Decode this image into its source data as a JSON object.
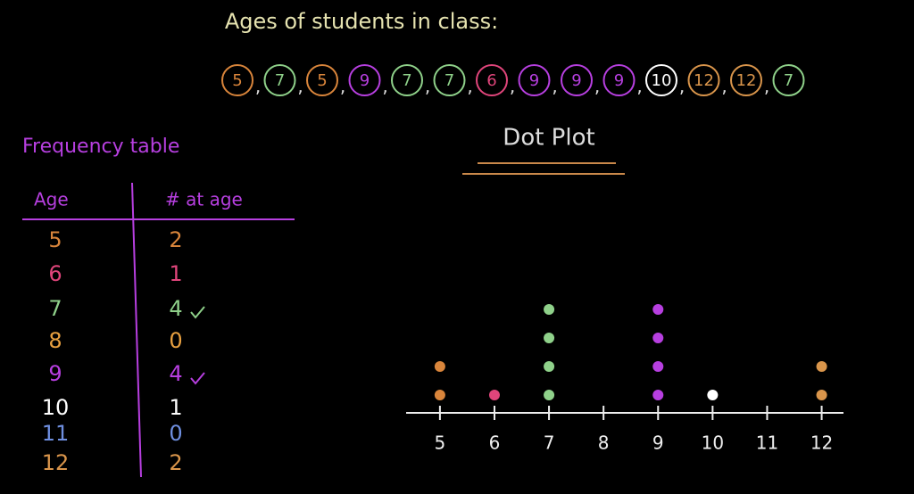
{
  "title": "Ages of students in class:",
  "ages": [
    5,
    7,
    5,
    9,
    7,
    7,
    6,
    9,
    9,
    9,
    10,
    12,
    12,
    7
  ],
  "separator": ",",
  "frequency_table": {
    "title": "Frequency table",
    "columns": [
      "Age",
      "# at age"
    ],
    "rows": [
      [
        5,
        2
      ],
      [
        6,
        1
      ],
      [
        7,
        4
      ],
      [
        8,
        0
      ],
      [
        9,
        4
      ],
      [
        10,
        1
      ],
      [
        11,
        0
      ],
      [
        12,
        2
      ]
    ]
  },
  "chart_data": {
    "type": "dot",
    "title": "Dot Plot",
    "x": [
      5,
      6,
      7,
      8,
      9,
      10,
      11,
      12
    ],
    "values": [
      2,
      1,
      4,
      0,
      4,
      1,
      0,
      2
    ],
    "colors": [
      "#d9853b",
      "#e0457b",
      "#8fd18a",
      "#e8a040",
      "#b73fe0",
      "#ffffff",
      "#6f8fe0",
      "#d9954b"
    ],
    "xlim": [
      4.38,
      12.4
    ],
    "xticks": [
      5,
      6,
      7,
      8,
      9,
      10,
      11,
      12
    ]
  }
}
